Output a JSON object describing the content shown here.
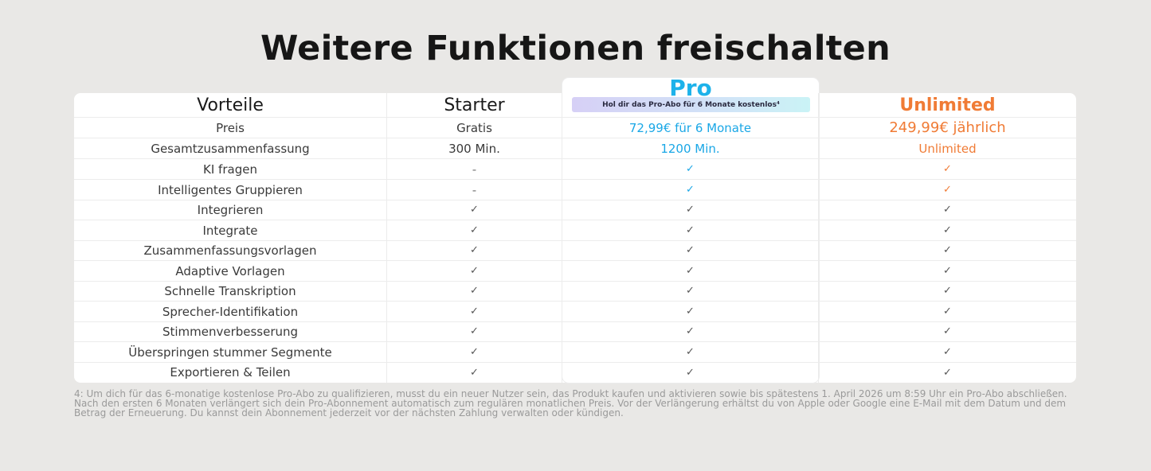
{
  "page": {
    "title": "Weitere Funktionen freischalten"
  },
  "header": {
    "benefits_label": "Vorteile",
    "starter_label": "Starter",
    "pro_label": "Pro",
    "pro_promo": "Hol dir das Pro-Abo für 6 Monate kostenlos⁴",
    "unlimited_label": "Unlimited"
  },
  "rows": [
    {
      "feature": "Preis",
      "starter": "Gratis",
      "pro": "72,99€ für 6 Monate",
      "unlimited": "249,99€ jährlich"
    },
    {
      "feature": "Gesamtzusammenfassung",
      "starter": "300 Min.",
      "pro": "1200 Min.",
      "unlimited": "Unlimited"
    },
    {
      "feature": "KI fragen",
      "starter": "-",
      "pro": "✓",
      "unlimited": "✓"
    },
    {
      "feature": "Intelligentes Gruppieren",
      "starter": "-",
      "pro": "✓",
      "unlimited": "✓"
    },
    {
      "feature": "Integrieren",
      "starter": "✓",
      "pro": "✓",
      "unlimited": "✓"
    },
    {
      "feature": "Integrate",
      "starter": "✓",
      "pro": "✓",
      "unlimited": "✓"
    },
    {
      "feature": "Zusammenfassungsvorlagen",
      "starter": "✓",
      "pro": "✓",
      "unlimited": "✓"
    },
    {
      "feature": "Adaptive Vorlagen",
      "starter": "✓",
      "pro": "✓",
      "unlimited": "✓"
    },
    {
      "feature": "Schnelle Transkription",
      "starter": "✓",
      "pro": "✓",
      "unlimited": "✓"
    },
    {
      "feature": "Sprecher-Identifikation",
      "starter": "✓",
      "pro": "✓",
      "unlimited": "✓"
    },
    {
      "feature": "Stimmenverbesserung",
      "starter": "✓",
      "pro": "✓",
      "unlimited": "✓"
    },
    {
      "feature": "Überspringen stummer Segmente",
      "starter": "✓",
      "pro": "✓",
      "unlimited": "✓"
    },
    {
      "feature": "Exportieren & Teilen",
      "starter": "✓",
      "pro": "✓",
      "unlimited": "✓"
    }
  ],
  "footnote": "4: Um dich für das 6-monatige kostenlose Pro-Abo zu qualifizieren, musst du ein neuer Nutzer sein, das Produkt kaufen und aktivieren sowie bis spätestens 1. April 2026 um 8:59 Uhr ein Pro-Abo abschließen. Nach den ersten 6 Monaten verlängert sich dein Pro-Abonnement automatisch zum regulären monatlichen Preis. Vor der Verlängerung erhältst du von Apple oder Google eine E-Mail mit dem Datum und dem Betrag der Erneuerung. Du kannst dein Abonnement jederzeit vor der nächsten Zahlung verwalten oder kündigen.",
  "colors": {
    "pro_accent": "#1aa7e6",
    "unlimited_accent": "#f07b35",
    "background": "#e9e8e6"
  }
}
